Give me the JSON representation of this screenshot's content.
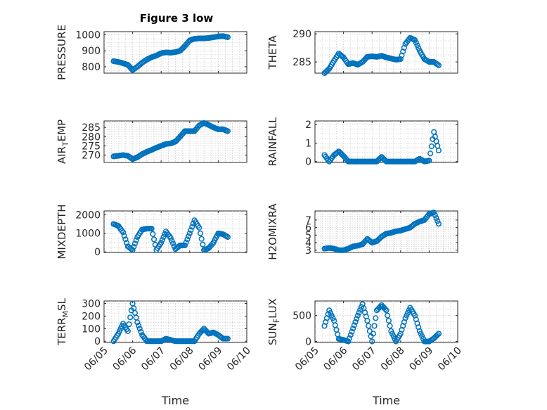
{
  "figure_title": "Figure 3 low",
  "chart_data": [
    {
      "type": "scatter",
      "ylabel": "PRESSURE",
      "title": "Figure 3 low",
      "xlim": [
        "06/05",
        "06/10"
      ],
      "ylim": [
        760,
        1020
      ],
      "yticks": [
        "800",
        "900",
        "1000"
      ],
      "xticks": [
        "06/05",
        "06/06",
        "06/07",
        "06/08",
        "06/09",
        "06/10"
      ],
      "show_xticklabels": false,
      "grid": true,
      "x": [
        "06/05 08:00",
        "06/05 12:00",
        "06/05 16:00",
        "06/05 20:00",
        "06/06 00:00",
        "06/06 04:00",
        "06/06 08:00",
        "06/06 12:00",
        "06/06 16:00",
        "06/06 20:00",
        "06/07 00:00",
        "06/07 04:00",
        "06/07 08:00",
        "06/07 12:00",
        "06/07 16:00",
        "06/07 20:00",
        "06/08 00:00",
        "06/08 04:00",
        "06/08 08:00",
        "06/08 12:00",
        "06/08 16:00",
        "06/08 20:00",
        "06/09 00:00",
        "06/09 04:00",
        "06/09 08:00"
      ],
      "y": [
        835,
        830,
        822,
        812,
        780,
        800,
        825,
        845,
        860,
        870,
        885,
        890,
        888,
        892,
        900,
        930,
        965,
        975,
        978,
        978,
        980,
        985,
        990,
        992,
        985
      ]
    },
    {
      "type": "scatter",
      "ylabel": "THETA",
      "xlim": [
        "06/05",
        "06/10"
      ],
      "ylim": [
        283,
        290.4
      ],
      "yticks": [
        "285",
        "290"
      ],
      "xticks": [
        "06/05",
        "06/06",
        "06/07",
        "06/08",
        "06/09",
        "06/10"
      ],
      "show_xticklabels": false,
      "grid": true,
      "x": [
        "06/05 08:00",
        "06/05 12:00",
        "06/05 16:00",
        "06/05 20:00",
        "06/06 00:00",
        "06/06 04:00",
        "06/06 08:00",
        "06/06 12:00",
        "06/06 16:00",
        "06/06 20:00",
        "06/07 00:00",
        "06/07 04:00",
        "06/07 08:00",
        "06/07 12:00",
        "06/07 16:00",
        "06/07 20:00",
        "06/08 00:00",
        "06/08 04:00",
        "06/08 08:00",
        "06/08 12:00",
        "06/08 16:00",
        "06/08 20:00",
        "06/09 00:00",
        "06/09 04:00",
        "06/09 08:00"
      ],
      "y": [
        283.0,
        283.8,
        285.2,
        286.5,
        285.8,
        284.6,
        284.8,
        284.5,
        285.0,
        285.9,
        286.0,
        285.9,
        286.1,
        285.8,
        285.6,
        285.4,
        285.5,
        288.2,
        289.3,
        288.9,
        287.0,
        285.5,
        285.0,
        285.0,
        284.4
      ]
    },
    {
      "type": "scatter",
      "ylabel": "AIR_TEMP",
      "xlim": [
        "06/05",
        "06/10"
      ],
      "ylim": [
        266,
        288.5
      ],
      "yticks": [
        "270",
        "275",
        "280",
        "285"
      ],
      "xticks": [
        "06/05",
        "06/06",
        "06/07",
        "06/08",
        "06/09",
        "06/10"
      ],
      "show_xticklabels": false,
      "grid": true,
      "x": [
        "06/05 08:00",
        "06/05 12:00",
        "06/05 16:00",
        "06/05 20:00",
        "06/06 00:00",
        "06/06 04:00",
        "06/06 08:00",
        "06/06 12:00",
        "06/06 16:00",
        "06/06 20:00",
        "06/07 00:00",
        "06/07 04:00",
        "06/07 08:00",
        "06/07 12:00",
        "06/07 16:00",
        "06/07 20:00",
        "06/08 00:00",
        "06/08 04:00",
        "06/08 08:00",
        "06/08 12:00",
        "06/08 16:00",
        "06/08 20:00",
        "06/09 00:00",
        "06/09 04:00",
        "06/09 08:00"
      ],
      "y": [
        269.3,
        269.6,
        270.0,
        269.6,
        267.8,
        268.8,
        270.5,
        271.8,
        272.8,
        274.0,
        275.0,
        276.0,
        276.3,
        277.3,
        280.0,
        283.0,
        283.0,
        283.0,
        286.0,
        287.5,
        286.3,
        285.0,
        284.0,
        284.0,
        283.0
      ]
    },
    {
      "type": "scatter",
      "ylabel": "RAINFALL",
      "xlim": [
        "06/05",
        "06/10"
      ],
      "ylim": [
        -0.05,
        2.2
      ],
      "yticks": [
        "0",
        "1",
        "2"
      ],
      "xticks": [
        "06/05",
        "06/06",
        "06/07",
        "06/08",
        "06/09",
        "06/10"
      ],
      "show_xticklabels": false,
      "grid": true,
      "x": [
        "06/05 08:00",
        "06/05 12:00",
        "06/05 16:00",
        "06/05 20:00",
        "06/06 00:00",
        "06/06 04:00",
        "06/06 08:00",
        "06/06 12:00",
        "06/06 16:00",
        "06/06 20:00",
        "06/07 00:00",
        "06/07 04:00",
        "06/07 08:00",
        "06/07 12:00",
        "06/07 16:00",
        "06/07 20:00",
        "06/08 00:00",
        "06/08 04:00",
        "06/08 08:00",
        "06/08 12:00",
        "06/08 16:00",
        "06/08 20:00",
        "06/09 00:00",
        "06/09 04:00",
        "06/09 08:00"
      ],
      "y": [
        0.35,
        0.0,
        0.35,
        0.55,
        0.3,
        0.0,
        0.0,
        0.0,
        0.0,
        0.0,
        0.0,
        0.0,
        0.25,
        0.0,
        0.0,
        0.0,
        0.0,
        0.0,
        0.0,
        0.0,
        0.15,
        0.0,
        0.05,
        1.6,
        0.6
      ]
    },
    {
      "type": "scatter",
      "ylabel": "MIXDEPTH",
      "xlim": [
        "06/05",
        "06/10"
      ],
      "ylim": [
        -30,
        2200
      ],
      "yticks": [
        "0",
        "1000",
        "2000"
      ],
      "xticks": [
        "06/05",
        "06/06",
        "06/07",
        "06/08",
        "06/09",
        "06/10"
      ],
      "show_xticklabels": false,
      "grid": true,
      "x": [
        "06/05 08:00",
        "06/05 12:00",
        "06/05 16:00",
        "06/05 20:00",
        "06/06 00:00",
        "06/06 04:00",
        "06/06 08:00",
        "06/06 12:00",
        "06/06 16:00",
        "06/06 20:00",
        "06/07 00:00",
        "06/07 04:00",
        "06/07 08:00",
        "06/07 12:00",
        "06/07 16:00",
        "06/07 20:00",
        "06/08 00:00",
        "06/08 04:00",
        "06/08 08:00",
        "06/08 12:00",
        "06/08 16:00",
        "06/08 20:00",
        "06/09 00:00",
        "06/09 04:00",
        "06/09 08:00"
      ],
      "y": [
        1500,
        1400,
        1050,
        300,
        100,
        800,
        1200,
        1250,
        1250,
        100,
        500,
        1100,
        750,
        150,
        350,
        350,
        1000,
        1700,
        1300,
        100,
        200,
        500,
        1000,
        950,
        800
      ]
    },
    {
      "type": "scatter",
      "ylabel": "H2OMIXRA",
      "xlim": [
        "06/05",
        "06/10"
      ],
      "ylim": [
        2.7,
        8.2
      ],
      "yticks": [
        "3",
        "4",
        "5",
        "6",
        "7"
      ],
      "xticks": [
        "06/05",
        "06/06",
        "06/07",
        "06/08",
        "06/09",
        "06/10"
      ],
      "show_xticklabels": false,
      "grid": true,
      "x": [
        "06/05 08:00",
        "06/05 12:00",
        "06/05 16:00",
        "06/05 20:00",
        "06/06 00:00",
        "06/06 04:00",
        "06/06 08:00",
        "06/06 12:00",
        "06/06 16:00",
        "06/06 20:00",
        "06/07 00:00",
        "06/07 04:00",
        "06/07 08:00",
        "06/07 12:00",
        "06/07 16:00",
        "06/07 20:00",
        "06/08 00:00",
        "06/08 04:00",
        "06/08 08:00",
        "06/08 12:00",
        "06/08 16:00",
        "06/08 20:00",
        "06/09 00:00",
        "06/09 04:00",
        "06/09 08:00"
      ],
      "y": [
        3.2,
        3.3,
        3.2,
        3.0,
        3.0,
        3.2,
        3.5,
        3.6,
        3.8,
        4.5,
        4.0,
        4.2,
        4.8,
        5.2,
        5.3,
        5.5,
        5.6,
        5.8,
        6.0,
        6.5,
        6.8,
        7.0,
        7.8,
        8.0,
        6.5
      ]
    },
    {
      "type": "scatter",
      "ylabel": "TERR_MSL",
      "xlim": [
        "06/05",
        "06/10"
      ],
      "ylim": [
        -10,
        320
      ],
      "yticks": [
        "0",
        "100",
        "200",
        "300"
      ],
      "xticks": [
        "06/05",
        "06/06",
        "06/07",
        "06/08",
        "06/09",
        "06/10"
      ],
      "show_xticklabels": true,
      "xlabel": "Time",
      "grid": true,
      "x": [
        "06/05 08:00",
        "06/05 12:00",
        "06/05 16:00",
        "06/05 20:00",
        "06/06 00:00",
        "06/06 04:00",
        "06/06 08:00",
        "06/06 12:00",
        "06/06 16:00",
        "06/06 20:00",
        "06/07 00:00",
        "06/07 04:00",
        "06/07 08:00",
        "06/07 12:00",
        "06/07 16:00",
        "06/07 20:00",
        "06/08 00:00",
        "06/08 04:00",
        "06/08 08:00",
        "06/08 12:00",
        "06/08 16:00",
        "06/08 20:00",
        "06/09 00:00",
        "06/09 04:00",
        "06/09 08:00"
      ],
      "y": [
        0,
        60,
        140,
        80,
        300,
        150,
        50,
        0,
        0,
        0,
        0,
        20,
        10,
        0,
        0,
        0,
        0,
        0,
        60,
        100,
        60,
        70,
        50,
        20,
        20
      ]
    },
    {
      "type": "scatter",
      "ylabel": "SUN_FLUX",
      "xlim": [
        "06/05",
        "06/10"
      ],
      "ylim": [
        -20,
        780
      ],
      "yticks": [
        "0",
        "500"
      ],
      "xticks": [
        "06/05",
        "06/06",
        "06/07",
        "06/08",
        "06/09",
        "06/10"
      ],
      "show_xticklabels": true,
      "xlabel": "Time",
      "grid": true,
      "x": [
        "06/05 08:00",
        "06/05 12:00",
        "06/05 16:00",
        "06/05 20:00",
        "06/06 00:00",
        "06/06 04:00",
        "06/06 08:00",
        "06/06 12:00",
        "06/06 16:00",
        "06/06 20:00",
        "06/07 00:00",
        "06/07 04:00",
        "06/07 08:00",
        "06/07 12:00",
        "06/07 16:00",
        "06/07 20:00",
        "06/08 00:00",
        "06/08 04:00",
        "06/08 08:00",
        "06/08 12:00",
        "06/08 16:00",
        "06/08 20:00",
        "06/09 00:00",
        "06/09 04:00",
        "06/09 08:00"
      ],
      "y": [
        300,
        600,
        400,
        50,
        30,
        0,
        250,
        500,
        720,
        400,
        0,
        600,
        700,
        600,
        200,
        0,
        150,
        450,
        650,
        500,
        200,
        0,
        0,
        60,
        150
      ]
    }
  ]
}
